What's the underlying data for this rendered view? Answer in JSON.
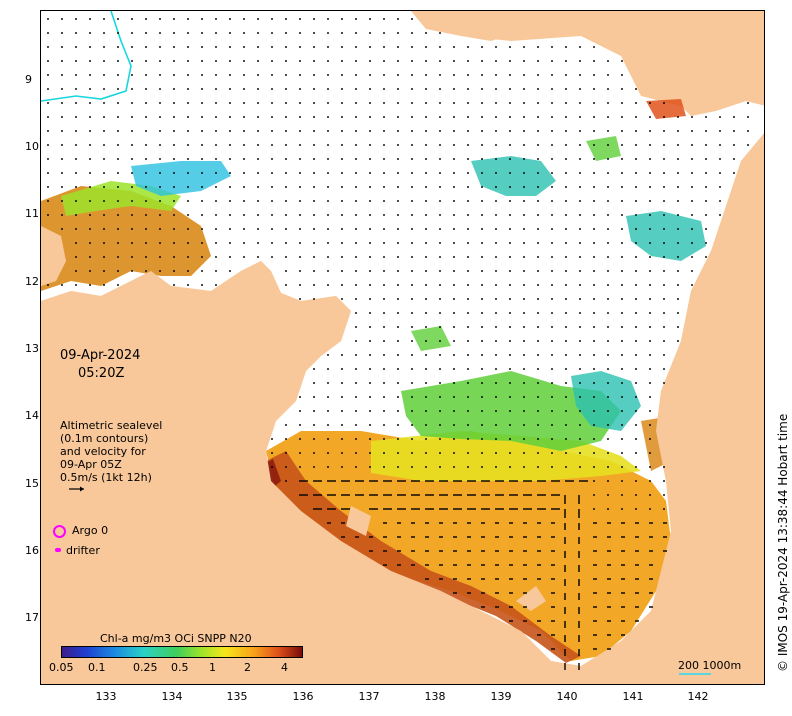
{
  "map": {
    "date": "09-Apr-2024",
    "time": "05:20Z",
    "info_lines": [
      "Altimetric sealevel",
      "(0.1m contours)",
      "and velocity for",
      "09-Apr 05Z",
      "0.5m/s (1kt 12h)"
    ],
    "legend": {
      "argo_label": "Argo 0",
      "drifter_label": "drifter"
    },
    "colorbar": {
      "title": "Chl-a mg/m3 OCi SNPP N20",
      "ticks": [
        "0.05",
        "0.1",
        "0.25",
        "0.5",
        "1",
        "2",
        "4"
      ]
    },
    "scale_label": "200  1000m",
    "copyright": "© IMOS 19-Apr-2024 13:38:44 Hobart time",
    "lat_ticks": [
      "9",
      "10",
      "11",
      "12",
      "13",
      "14",
      "15",
      "16",
      "17"
    ],
    "lon_ticks": [
      "133",
      "134",
      "135",
      "136",
      "137",
      "138",
      "139",
      "140",
      "141",
      "142"
    ],
    "colors": {
      "land": "#f9c89a",
      "ocean": "#ffffff",
      "accent": "#ff00ff",
      "bathy": "#5ad6e0"
    }
  }
}
